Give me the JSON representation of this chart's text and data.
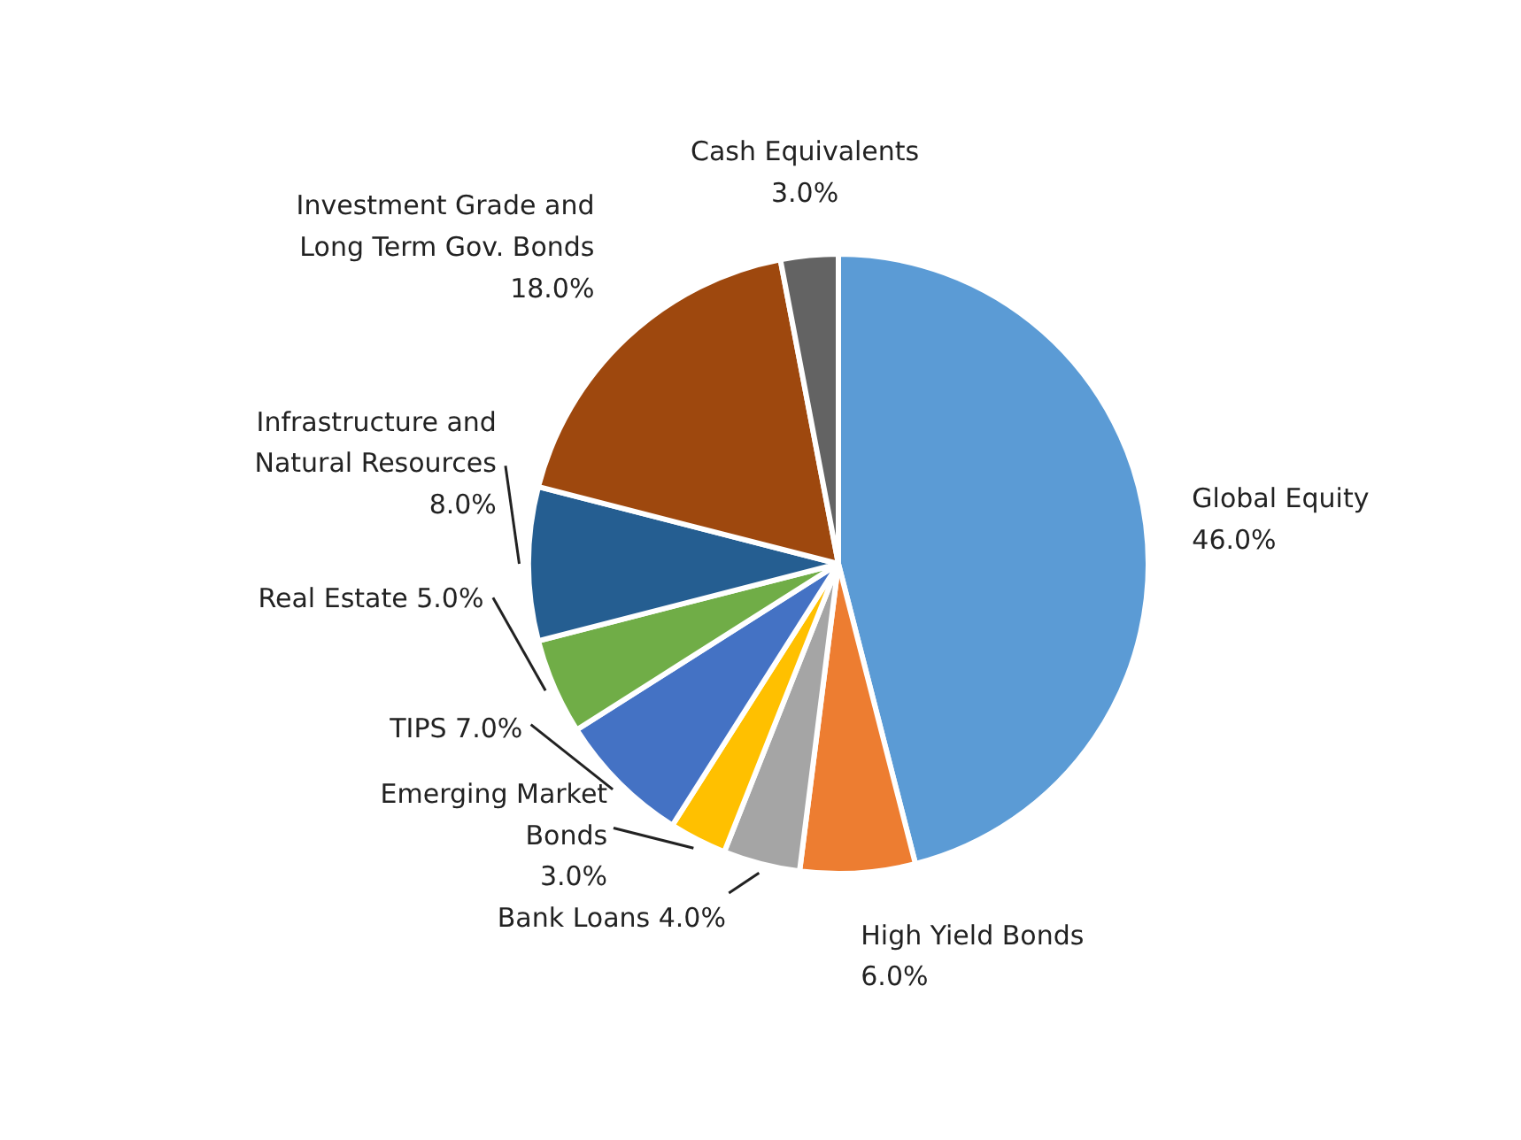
{
  "chart_data": {
    "type": "pie",
    "categories": [
      "Global Equity",
      "High Yield Bonds",
      "Bank Loans",
      "Emerging Market Bonds",
      "TIPS",
      "Real Estate",
      "Infrastructure and Natural Resources",
      "Investment Grade and Long Term Gov. Bonds",
      "Cash Equivalents"
    ],
    "values": [
      46,
      6,
      4,
      3,
      7,
      5,
      8,
      18,
      3
    ],
    "colors": [
      "#5b9bd5",
      "#ed7d31",
      "#a5a5a5",
      "#ffc000",
      "#4472c4",
      "#70ad47",
      "#255e91",
      "#9e480e",
      "#636363"
    ],
    "value_labels": [
      "46.0%",
      "6.0%",
      "4.0%",
      "3.0%",
      "7.0%",
      "5.0%",
      "8.0%",
      "18.0%",
      "3.0%"
    ],
    "legend": false
  }
}
